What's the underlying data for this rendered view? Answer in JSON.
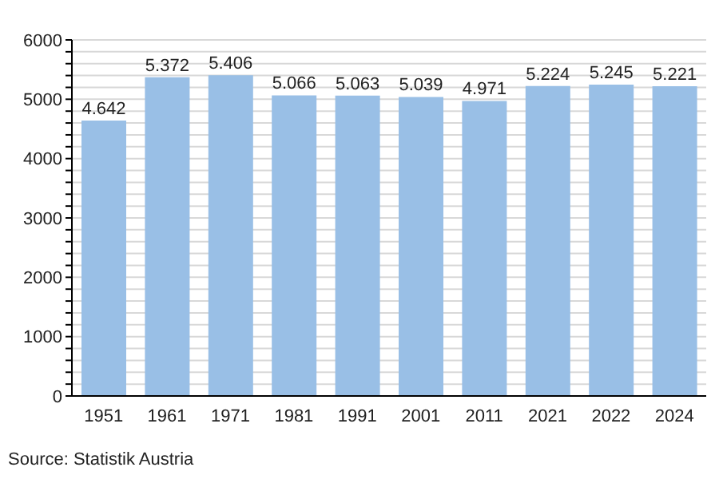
{
  "chart_data": {
    "type": "bar",
    "categories": [
      "1951",
      "1961",
      "1971",
      "1981",
      "1991",
      "2001",
      "2011",
      "2021",
      "2022",
      "2024"
    ],
    "values": [
      4642,
      5372,
      5406,
      5066,
      5063,
      5039,
      4971,
      5224,
      5245,
      5221
    ],
    "value_labels": [
      "4.642",
      "5.372",
      "5.406",
      "5.066",
      "5.063",
      "5.039",
      "4.971",
      "5.224",
      "5.245",
      "5.221"
    ],
    "color": "#99bfe6",
    "ylim": [
      0,
      6000
    ],
    "yticks": [
      0,
      {
        "value": 200,
        "label": null
      },
      {
        "value": 400,
        "label": null
      },
      {
        "value": 600,
        "label": null
      },
      {
        "value": 800,
        "label": null
      },
      1000,
      {
        "value": 1200,
        "label": null
      },
      {
        "value": 1400,
        "label": null
      },
      {
        "value": 1600,
        "label": null
      },
      {
        "value": 1800,
        "label": null
      },
      2000,
      {
        "value": 2200,
        "label": null
      },
      {
        "value": 2400,
        "label": null
      },
      {
        "value": 2600,
        "label": null
      },
      {
        "value": 2800,
        "label": null
      },
      3000,
      {
        "value": 3200,
        "label": null
      },
      {
        "value": 3400,
        "label": null
      },
      {
        "value": 3600,
        "label": null
      },
      {
        "value": 3800,
        "label": null
      },
      4000,
      {
        "value": 4200,
        "label": null
      },
      {
        "value": 4400,
        "label": null
      },
      {
        "value": 4600,
        "label": null
      },
      {
        "value": 4800,
        "label": null
      },
      5000,
      {
        "value": 5200,
        "label": null
      },
      {
        "value": 5400,
        "label": null
      },
      {
        "value": 5600,
        "label": null
      },
      {
        "value": 5800,
        "label": null
      },
      6000
    ],
    "grid": "y",
    "annotations": [
      "Source: Statistik Austria"
    ]
  }
}
